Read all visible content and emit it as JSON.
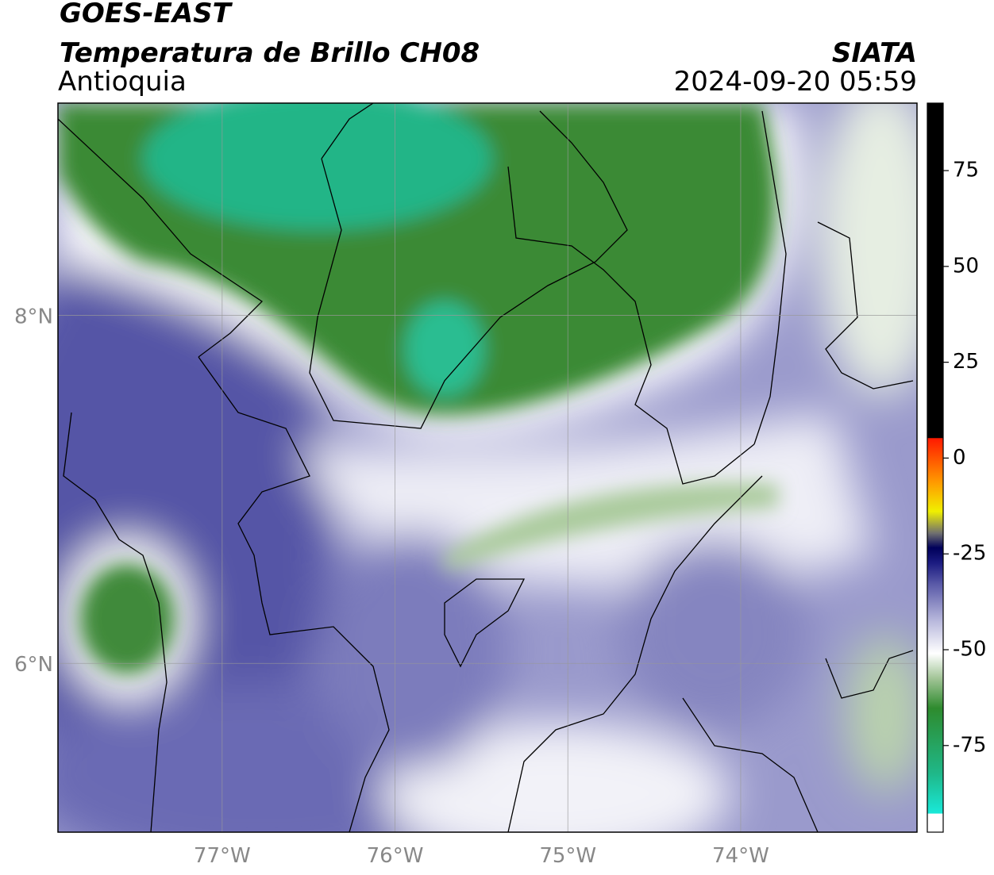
{
  "header": {
    "source": "GOES-EAST",
    "product": "Temperatura de Brillo CH08",
    "agency": "SIATA",
    "region": "Antioquia",
    "datetime": "2024-09-20 05:59"
  },
  "map": {
    "xlim": [
      -77.95,
      -72.98
    ],
    "ylim": [
      5.03,
      9.22
    ],
    "xticks": [
      {
        "value": -77,
        "label": "77°W"
      },
      {
        "value": -76,
        "label": "76°W"
      },
      {
        "value": -75,
        "label": "75°W"
      },
      {
        "value": -74,
        "label": "74°W"
      }
    ],
    "yticks": [
      {
        "value": 8,
        "label": "8°N"
      },
      {
        "value": 6,
        "label": "6°N"
      }
    ],
    "grid": true
  },
  "colorbar": {
    "lim": [
      -97.6,
      92.6
    ],
    "ticks": [
      75,
      50,
      25,
      0,
      -25,
      -50,
      -75
    ]
  }
}
